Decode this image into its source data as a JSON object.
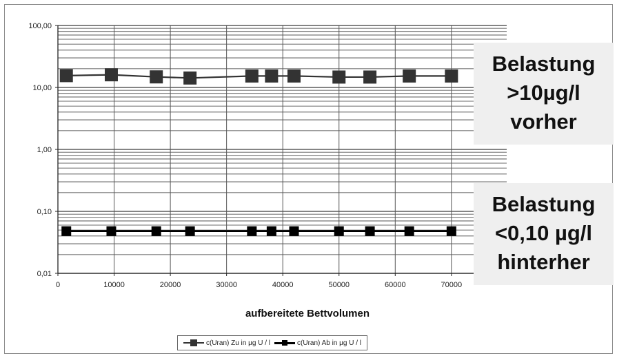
{
  "chart_data": {
    "type": "line",
    "yscale": "log",
    "ylim": [
      0.01,
      100
    ],
    "xlim": [
      0,
      70000
    ],
    "ytick_labels": [
      "100,00",
      "10,00",
      "1,00",
      "0,10",
      "0,01"
    ],
    "yticks": [
      100,
      10,
      1,
      0.1,
      0.01
    ],
    "xticks": [
      0,
      10000,
      20000,
      30000,
      40000,
      50000,
      60000,
      70000
    ],
    "xtick_labels": [
      "0",
      "10000",
      "20000",
      "30000",
      "40000",
      "50000",
      "60000",
      "70000"
    ],
    "xlabel": "aufbereitete Bettvolumen",
    "grid": true,
    "legend_position": "bottom",
    "series": [
      {
        "name": "c(Uran) Zu in µg U / l",
        "marker": "square-large",
        "color": "#333333",
        "x": [
          1500,
          9500,
          17500,
          23500,
          34500,
          38000,
          42000,
          50000,
          55500,
          62500,
          70000
        ],
        "y": [
          15.5,
          16.0,
          14.8,
          14.2,
          15.3,
          15.3,
          15.3,
          14.7,
          14.7,
          15.3,
          15.3
        ]
      },
      {
        "name": "c(Uran) Ab in µg U / l",
        "marker": "square-small",
        "color": "#000000",
        "x": [
          1500,
          9500,
          17500,
          23500,
          34500,
          38000,
          42000,
          50000,
          55500,
          62500,
          70000
        ],
        "y": [
          0.048,
          0.048,
          0.048,
          0.048,
          0.048,
          0.048,
          0.048,
          0.048,
          0.048,
          0.048,
          0.048
        ]
      }
    ]
  },
  "annotations": {
    "top": [
      "Belastung",
      ">10µg/l",
      "vorher"
    ],
    "bottom": [
      "Belastung",
      "<0,10 µg/l",
      "hinterher"
    ]
  }
}
